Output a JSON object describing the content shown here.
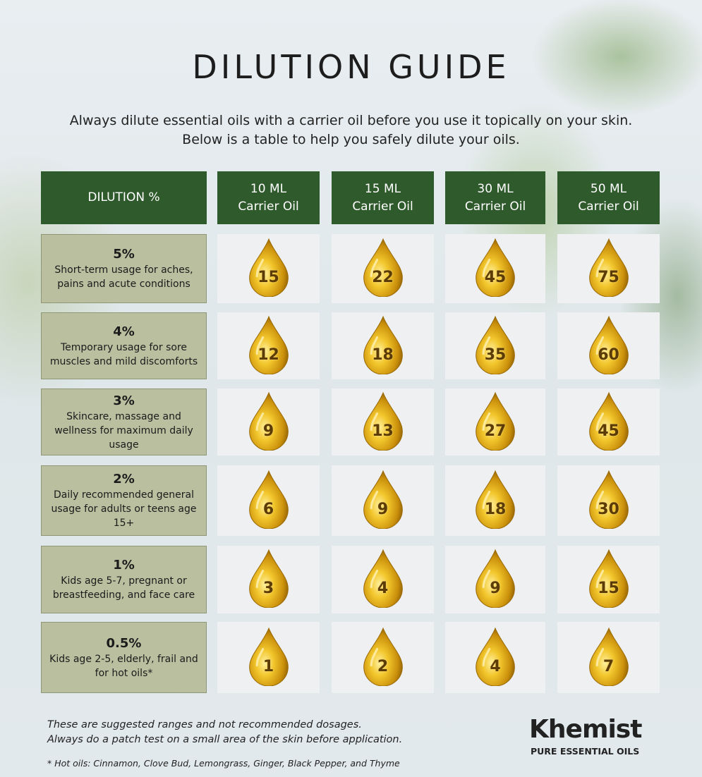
{
  "header": {
    "title": "DILUTION GUIDE",
    "intro": "Always dilute essential oils with a carrier oil before you use it topically on your skin.  Below is a table to help you safely dilute your oils."
  },
  "table": {
    "corner": "DILUTION %",
    "columns": [
      {
        "volume": "10 ML",
        "label": "Carrier Oil"
      },
      {
        "volume": "15 ML",
        "label": "Carrier Oil"
      },
      {
        "volume": "30 ML",
        "label": "Carrier Oil"
      },
      {
        "volume": "50 ML",
        "label": "Carrier Oil"
      }
    ],
    "rows": [
      {
        "dilution": "5%",
        "description": "Short-term usage for aches, pains and acute conditions",
        "drops": [
          15,
          22,
          45,
          75
        ]
      },
      {
        "dilution": "4%",
        "description": "Temporary usage for sore muscles and mild discomforts",
        "drops": [
          12,
          18,
          35,
          60
        ]
      },
      {
        "dilution": "3%",
        "description": "Skincare, massage and wellness for maximum daily usage",
        "drops": [
          9,
          13,
          27,
          45
        ]
      },
      {
        "dilution": "2%",
        "description": "Daily recommended general usage for adults or teens age 15+",
        "drops": [
          6,
          9,
          18,
          30
        ]
      },
      {
        "dilution": "1%",
        "description": "Kids age 5-7, pregnant or breastfeeding, and face care",
        "drops": [
          3,
          4,
          9,
          15
        ]
      },
      {
        "dilution": "0.5%",
        "description": "Kids age 2-5, elderly, frail and for hot oils*",
        "drops": [
          1,
          2,
          4,
          7
        ]
      }
    ]
  },
  "footer": {
    "notes": [
      "These are suggested ranges and not recommended dosages.",
      "Always do a patch test on a small area of the skin before application."
    ],
    "hot_oils": "* Hot oils: Cinnamon, Clove Bud, Lemongrass, Ginger, Black Pepper, and Thyme",
    "brand": "Khemist",
    "tagline": "PURE ESSENTIAL OILS"
  }
}
